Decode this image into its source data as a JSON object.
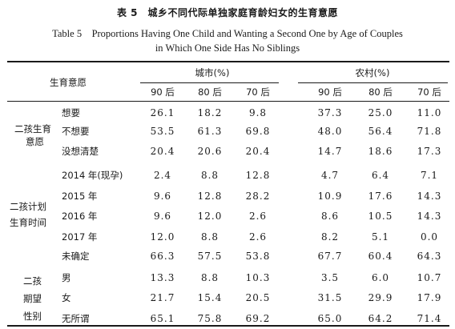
{
  "title_cn": "表 5　城乡不同代际单独家庭育龄妇女的生育意愿",
  "title_en_line1": "Table 5　Proportions Having One Child and Wanting a Second One by Age of Couples",
  "title_en_line2": "in Which One Side Has No Siblings",
  "header": {
    "row_header": "生育意愿",
    "city": "城市(%)",
    "rural": "农村(%)",
    "subcolumns": [
      "90 后",
      "80 后",
      "70 后",
      "90 后",
      "80 后",
      "70 后"
    ]
  },
  "groups": [
    {
      "label_lines": [
        "二孩生育",
        "意愿"
      ],
      "rows": [
        {
          "label": "想要",
          "values": [
            "26.1",
            "18.2",
            "9.8",
            "37.3",
            "25.0",
            "11.0"
          ]
        },
        {
          "label": "不想要",
          "values": [
            "53.5",
            "61.3",
            "69.8",
            "48.0",
            "56.4",
            "71.8"
          ]
        },
        {
          "label": "没想清楚",
          "values": [
            "20.4",
            "20.6",
            "20.4",
            "14.7",
            "18.6",
            "17.3"
          ]
        }
      ]
    },
    {
      "label_lines": [
        "二孩计划",
        "生育时间"
      ],
      "rows": [
        {
          "label": "2014 年(现孕)",
          "values": [
            "2.4",
            "8.8",
            "12.8",
            "4.7",
            "6.4",
            "7.1"
          ]
        },
        {
          "label": "2015 年",
          "values": [
            "9.6",
            "12.8",
            "28.2",
            "10.9",
            "17.6",
            "14.3"
          ]
        },
        {
          "label": "2016 年",
          "values": [
            "9.6",
            "12.0",
            "2.6",
            "8.6",
            "10.5",
            "14.3"
          ]
        },
        {
          "label": "2017 年",
          "values": [
            "12.0",
            "8.8",
            "2.6",
            "8.2",
            "5.1",
            "0.0"
          ]
        },
        {
          "label": "未确定",
          "values": [
            "66.3",
            "57.5",
            "53.8",
            "67.7",
            "60.4",
            "64.3"
          ]
        }
      ]
    },
    {
      "label_lines": [
        "二孩",
        "期望",
        "性别"
      ],
      "rows": [
        {
          "label": "男",
          "values": [
            "13.3",
            "8.8",
            "10.3",
            "3.5",
            "6.0",
            "10.7"
          ]
        },
        {
          "label": "女",
          "values": [
            "21.7",
            "15.4",
            "20.5",
            "31.5",
            "29.9",
            "17.9"
          ]
        },
        {
          "label": "无所谓",
          "values": [
            "65.1",
            "75.8",
            "69.2",
            "65.0",
            "64.2",
            "71.4"
          ]
        }
      ]
    }
  ]
}
